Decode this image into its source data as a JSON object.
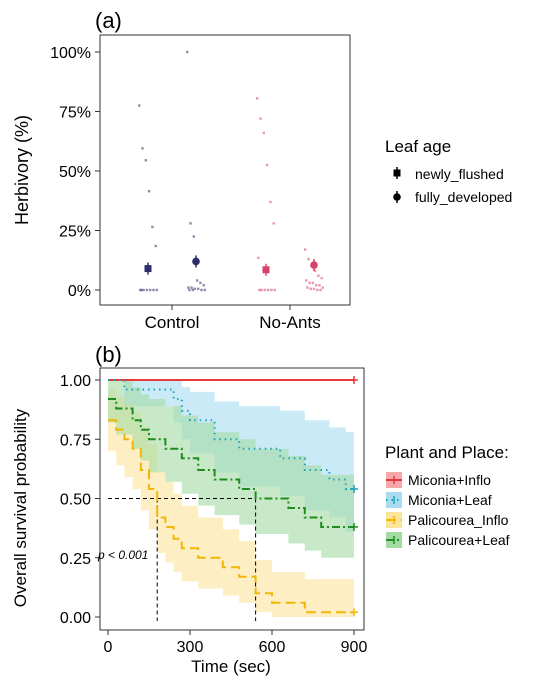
{
  "figure": {
    "panel_a_label": "(a)",
    "panel_b_label": "(b)"
  },
  "chart_data": [
    {
      "type": "scatter",
      "panel": "(a)",
      "ylabel": "Herbivory (%)",
      "xlabel": "",
      "categories": [
        "Control",
        "No-Ants"
      ],
      "ylim": [
        0,
        100
      ],
      "y_ticks": [
        "0%",
        "25%",
        "50%",
        "75%",
        "100%"
      ],
      "legend_title": "Leaf age",
      "legend_position": "right",
      "series": [
        {
          "name": "newly_flushed",
          "marker": "square",
          "points": [
            {
              "category": "Control",
              "mean": 9,
              "raw": [
                77.5,
                59.5,
                54.5,
                41.5,
                26.5,
                18.5,
                0,
                0,
                0,
                0,
                0,
                0,
                0
              ]
            },
            {
              "category": "No-Ants",
              "mean": 8.5,
              "raw": [
                80.5,
                72,
                66,
                52.5,
                37,
                28,
                13.5,
                0,
                0,
                0,
                0,
                0,
                0
              ]
            }
          ]
        },
        {
          "name": "fully_developed",
          "marker": "circle",
          "points": [
            {
              "category": "Control",
              "mean": 12,
              "raw": [
                100,
                28,
                22.5,
                4,
                3,
                2,
                1,
                1,
                0.5,
                0.5,
                0,
                0,
                0,
                0
              ]
            },
            {
              "category": "No-Ants",
              "mean": 10.5,
              "raw": [
                17,
                13,
                10,
                8,
                6,
                5,
                4,
                3,
                3,
                2,
                2,
                1,
                1,
                0.5,
                0.5,
                0,
                0
              ]
            }
          ]
        }
      ],
      "colors": {
        "Control": "#2d2d6e",
        "No-Ants": "#d94268"
      }
    },
    {
      "type": "line",
      "panel": "(b)",
      "xlabel": "Time (sec)",
      "ylabel": "Overall survival probability",
      "xlim": [
        0,
        900
      ],
      "ylim": [
        0,
        1
      ],
      "x_ticks": [
        0,
        300,
        600,
        900
      ],
      "y_ticks": [
        "0.00",
        "0.25",
        "0.50",
        "0.75",
        "1.00"
      ],
      "annotation": "p < 0.001",
      "median_lines": [
        180,
        540
      ],
      "legend_title": "Plant and Place:",
      "legend_position": "right",
      "series": [
        {
          "name": "Miconia+Inflo",
          "color": "#e8383c",
          "fill": "#f4a8a8",
          "dash": "solid",
          "steps": [
            [
              0,
              1.0
            ],
            [
              900,
              1.0
            ]
          ],
          "ci_low": [
            [
              0,
              1.0
            ],
            [
              900,
              1.0
            ]
          ],
          "ci_high": [
            [
              0,
              1.0
            ],
            [
              900,
              1.0
            ]
          ],
          "censor": [
            [
              900,
              1.0
            ]
          ]
        },
        {
          "name": "Miconia+Leaf",
          "color": "#1aa3b8",
          "fill": "#a9dcf1",
          "dash": "dot",
          "steps": [
            [
              0,
              1.0
            ],
            [
              60,
              0.96
            ],
            [
              240,
              0.92
            ],
            [
              270,
              0.87
            ],
            [
              300,
              0.83
            ],
            [
              390,
              0.75
            ],
            [
              480,
              0.71
            ],
            [
              630,
              0.67
            ],
            [
              720,
              0.62
            ],
            [
              810,
              0.58
            ],
            [
              870,
              0.54
            ],
            [
              900,
              0.54
            ]
          ],
          "ci_low": [
            [
              0,
              1.0
            ],
            [
              60,
              0.89
            ],
            [
              240,
              0.82
            ],
            [
              270,
              0.75
            ],
            [
              300,
              0.69
            ],
            [
              390,
              0.61
            ],
            [
              480,
              0.55
            ],
            [
              630,
              0.51
            ],
            [
              720,
              0.45
            ],
            [
              810,
              0.42
            ],
            [
              870,
              0.36
            ],
            [
              900,
              0.36
            ]
          ],
          "ci_high": [
            [
              0,
              1.0
            ],
            [
              240,
              1.0
            ],
            [
              270,
              0.97
            ],
            [
              300,
              0.95
            ],
            [
              390,
              0.91
            ],
            [
              480,
              0.89
            ],
            [
              630,
              0.87
            ],
            [
              720,
              0.83
            ],
            [
              810,
              0.8
            ],
            [
              870,
              0.78
            ],
            [
              900,
              0.78
            ]
          ],
          "censor": [
            [
              900,
              0.54
            ]
          ]
        },
        {
          "name": "Palicourea_Inflo",
          "color": "#f2b705",
          "fill": "#fbe59b",
          "dash": "longdash",
          "steps": [
            [
              0,
              0.83
            ],
            [
              30,
              0.79
            ],
            [
              60,
              0.75
            ],
            [
              90,
              0.71
            ],
            [
              120,
              0.62
            ],
            [
              150,
              0.54
            ],
            [
              180,
              0.42
            ],
            [
              210,
              0.38
            ],
            [
              240,
              0.33
            ],
            [
              270,
              0.29
            ],
            [
              330,
              0.25
            ],
            [
              420,
              0.21
            ],
            [
              480,
              0.17
            ],
            [
              540,
              0.1
            ],
            [
              600,
              0.06
            ],
            [
              720,
              0.02
            ],
            [
              900,
              0.02
            ]
          ],
          "ci_low": [
            [
              0,
              0.7
            ],
            [
              30,
              0.64
            ],
            [
              60,
              0.59
            ],
            [
              90,
              0.54
            ],
            [
              120,
              0.45
            ],
            [
              150,
              0.37
            ],
            [
              180,
              0.27
            ],
            [
              210,
              0.23
            ],
            [
              240,
              0.19
            ],
            [
              270,
              0.15
            ],
            [
              330,
              0.12
            ],
            [
              420,
              0.09
            ],
            [
              480,
              0.06
            ],
            [
              540,
              0.02
            ],
            [
              600,
              0.0
            ],
            [
              900,
              0.0
            ]
          ],
          "ci_high": [
            [
              0,
              0.96
            ],
            [
              30,
              0.93
            ],
            [
              60,
              0.9
            ],
            [
              90,
              0.87
            ],
            [
              120,
              0.8
            ],
            [
              150,
              0.73
            ],
            [
              180,
              0.61
            ],
            [
              210,
              0.57
            ],
            [
              240,
              0.52
            ],
            [
              270,
              0.47
            ],
            [
              330,
              0.42
            ],
            [
              420,
              0.37
            ],
            [
              480,
              0.32
            ],
            [
              540,
              0.24
            ],
            [
              600,
              0.19
            ],
            [
              720,
              0.16
            ],
            [
              900,
              0.16
            ]
          ],
          "censor": [
            [
              900,
              0.02
            ]
          ]
        },
        {
          "name": "Palicourea+Leaf",
          "color": "#1e8c1e",
          "fill": "#a3dba3",
          "dash": "dotdash",
          "steps": [
            [
              0,
              0.92
            ],
            [
              30,
              0.88
            ],
            [
              90,
              0.83
            ],
            [
              120,
              0.79
            ],
            [
              150,
              0.75
            ],
            [
              210,
              0.71
            ],
            [
              270,
              0.67
            ],
            [
              330,
              0.62
            ],
            [
              390,
              0.58
            ],
            [
              480,
              0.54
            ],
            [
              540,
              0.5
            ],
            [
              660,
              0.46
            ],
            [
              720,
              0.42
            ],
            [
              780,
              0.38
            ],
            [
              900,
              0.38
            ]
          ],
          "ci_low": [
            [
              0,
              0.82
            ],
            [
              30,
              0.77
            ],
            [
              90,
              0.71
            ],
            [
              120,
              0.66
            ],
            [
              150,
              0.61
            ],
            [
              210,
              0.57
            ],
            [
              270,
              0.52
            ],
            [
              330,
              0.47
            ],
            [
              390,
              0.43
            ],
            [
              480,
              0.39
            ],
            [
              540,
              0.35
            ],
            [
              660,
              0.31
            ],
            [
              720,
              0.28
            ],
            [
              780,
              0.25
            ],
            [
              900,
              0.25
            ]
          ],
          "ci_high": [
            [
              0,
              1.0
            ],
            [
              90,
              0.97
            ],
            [
              120,
              0.94
            ],
            [
              150,
              0.92
            ],
            [
              210,
              0.89
            ],
            [
              270,
              0.85
            ],
            [
              330,
              0.82
            ],
            [
              390,
              0.78
            ],
            [
              480,
              0.75
            ],
            [
              540,
              0.71
            ],
            [
              660,
              0.68
            ],
            [
              720,
              0.64
            ],
            [
              780,
              0.6
            ],
            [
              900,
              0.6
            ]
          ],
          "censor": [
            [
              900,
              0.38
            ]
          ]
        }
      ]
    }
  ]
}
